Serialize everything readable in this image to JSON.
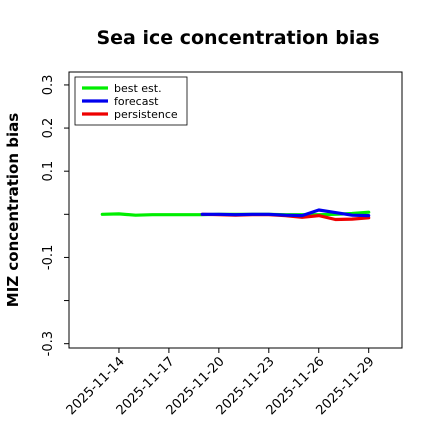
{
  "chart_data": {
    "type": "line",
    "title": "Sea ice concentration bias",
    "ylabel": "MIZ concentration bias",
    "xlabel": "",
    "ylim": [
      -0.31,
      0.33
    ],
    "yticks": [
      -0.3,
      -0.2,
      -0.1,
      0.0,
      0.1,
      0.2,
      0.3
    ],
    "ytick_labels": [
      "-0.3",
      "",
      "-0.1",
      "",
      "0.1",
      "0.2",
      "0.3"
    ],
    "xlim": [
      "2025-11-11",
      "2025-12-01"
    ],
    "xticks": [
      "2025-11-14",
      "2025-11-17",
      "2025-11-20",
      "2025-11-23",
      "2025-11-26",
      "2025-11-29"
    ],
    "xtick_colors": [
      "#000000",
      "#000000",
      "#228b22",
      "#000000",
      "#000000",
      "#000000"
    ],
    "legend_position": "upper-left",
    "series": [
      {
        "name": "best est.",
        "color": "#00ee00",
        "x": [
          "2025-11-13",
          "2025-11-14",
          "2025-11-15",
          "2025-11-16",
          "2025-11-17",
          "2025-11-18",
          "2025-11-19",
          "2025-11-20",
          "2025-11-21",
          "2025-11-22",
          "2025-11-23",
          "2025-11-24",
          "2025-11-25",
          "2025-11-26",
          "2025-11-27",
          "2025-11-28",
          "2025-11-29"
        ],
        "values": [
          0.0,
          0.001,
          -0.002,
          -0.001,
          -0.001,
          -0.001,
          -0.001,
          0.0,
          0.0,
          0.0,
          0.0,
          -0.001,
          -0.001,
          -0.001,
          0.0,
          0.002,
          0.005
        ]
      },
      {
        "name": "forecast",
        "color": "#0000ee",
        "x": [
          "2025-11-19",
          "2025-11-20",
          "2025-11-21",
          "2025-11-22",
          "2025-11-23",
          "2025-11-24",
          "2025-11-25",
          "2025-11-26",
          "2025-11-27",
          "2025-11-28",
          "2025-11-29"
        ],
        "values": [
          0.0,
          0.0,
          -0.001,
          0.0,
          0.0,
          -0.002,
          -0.003,
          0.01,
          0.004,
          -0.002,
          -0.003
        ]
      },
      {
        "name": "persistence",
        "color": "#ee0000",
        "x": [
          "2025-11-19",
          "2025-11-20",
          "2025-11-21",
          "2025-11-22",
          "2025-11-23",
          "2025-11-24",
          "2025-11-25",
          "2025-11-26",
          "2025-11-27",
          "2025-11-28",
          "2025-11-29"
        ],
        "values": [
          0.0,
          -0.001,
          -0.002,
          -0.001,
          -0.001,
          -0.003,
          -0.007,
          -0.003,
          -0.012,
          -0.011,
          -0.008
        ]
      }
    ]
  }
}
